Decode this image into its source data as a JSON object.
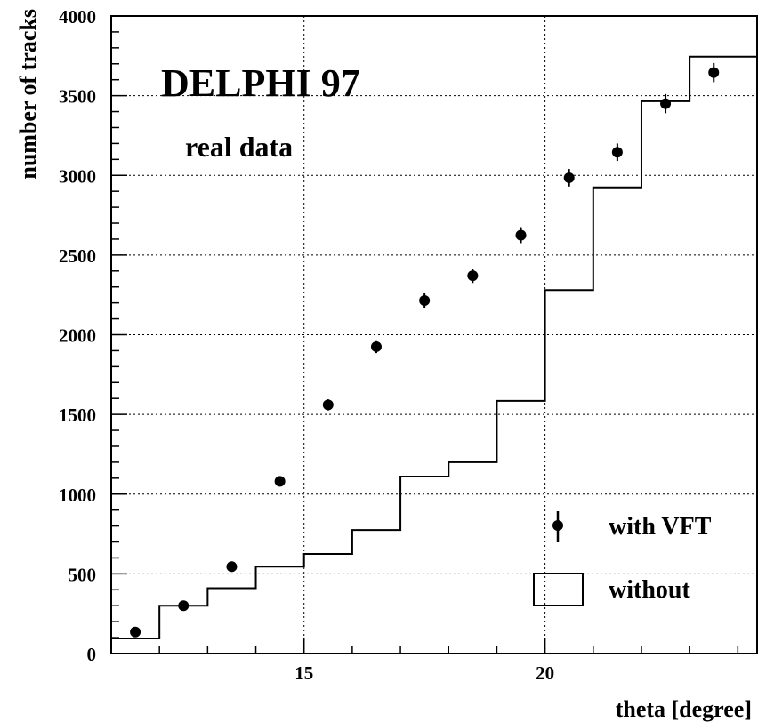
{
  "chart_data": {
    "type": "scatter",
    "xlabel": "theta [degree]",
    "ylabel": "number of tracks",
    "xlim": [
      11,
      24.4
    ],
    "ylim": [
      0,
      4000
    ],
    "x_ticks": [
      15,
      20
    ],
    "y_ticks": [
      0,
      500,
      1000,
      1500,
      2000,
      2500,
      3000,
      3500,
      4000
    ],
    "grid": true,
    "annotations": [
      "DELPHI 97",
      "real data"
    ],
    "legend": {
      "position": "bottom-right",
      "entries": [
        "with VFT",
        "without"
      ]
    },
    "series": [
      {
        "name": "with VFT",
        "style": "points-with-error-bars",
        "x": [
          11.5,
          12.5,
          13.5,
          14.5,
          15.5,
          16.5,
          17.5,
          18.5,
          19.5,
          20.5,
          21.5,
          22.5,
          23.5
        ],
        "y": [
          135,
          300,
          545,
          1080,
          1560,
          1925,
          2215,
          2370,
          2625,
          2985,
          3145,
          3450,
          3645
        ],
        "err": [
          15,
          20,
          25,
          30,
          35,
          40,
          45,
          45,
          50,
          55,
          55,
          60,
          60
        ]
      },
      {
        "name": "without",
        "style": "histogram-step",
        "bin_edges": [
          11,
          12,
          13,
          14,
          15,
          16,
          17,
          18,
          19,
          20,
          21,
          22,
          23,
          24.4
        ],
        "values": [
          95,
          300,
          410,
          545,
          625,
          775,
          1110,
          1200,
          1585,
          2280,
          2925,
          3465,
          3745
        ]
      }
    ]
  }
}
